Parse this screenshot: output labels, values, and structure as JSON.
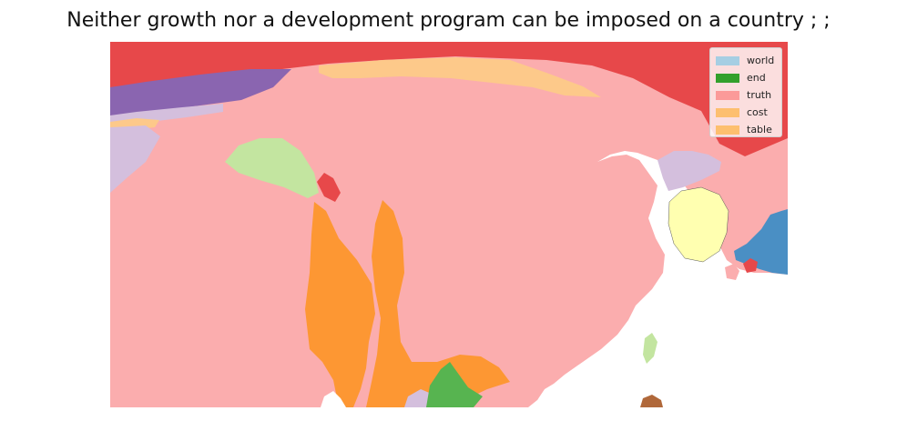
{
  "title": "Neither growth nor a development program can be imposed on a country ; ;",
  "legend": {
    "placement": "top-right",
    "items": [
      {
        "label": "world",
        "color": "#a6cee3"
      },
      {
        "label": "end",
        "color": "#33a02c"
      },
      {
        "label": "truth",
        "color": "#fb9a99"
      },
      {
        "label": "cost",
        "color": "#fdbf6f"
      },
      {
        "label": "table",
        "color": "#fdbf6f"
      }
    ]
  },
  "region_colors": {
    "truth": "#fbadae",
    "red": "#e7484a",
    "purple": "#8a65b0",
    "lavender": "#d4bfdd",
    "cost": "#fdc98a",
    "orange": "#fd9733",
    "light_green": "#c3e5a0",
    "green": "#57b450",
    "yellow": "#ffffb0",
    "blue": "#4a8fc4",
    "brown": "#b0683a"
  }
}
